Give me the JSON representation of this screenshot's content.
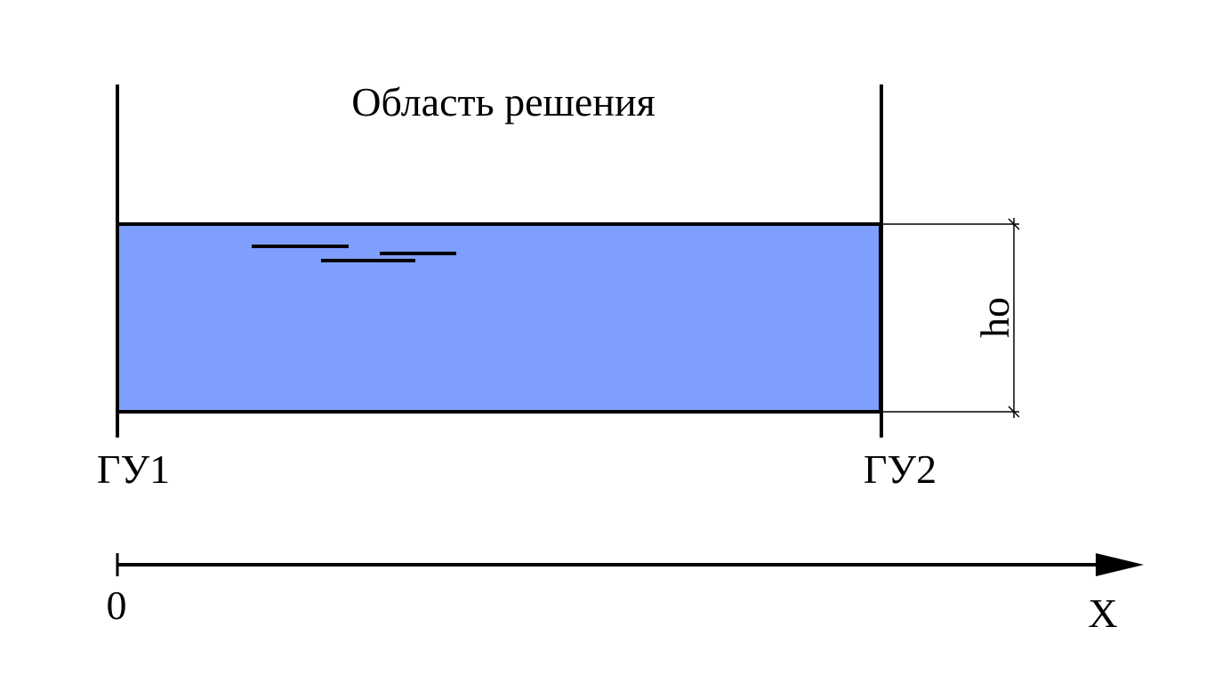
{
  "diagram": {
    "title": "Область решения",
    "left_boundary_label": "ГУ1",
    "right_boundary_label": "ГУ2",
    "depth_label": "ho",
    "origin_label": "0",
    "axis_label": "X",
    "water_color": "#7f9fff",
    "line_color": "#000000"
  }
}
